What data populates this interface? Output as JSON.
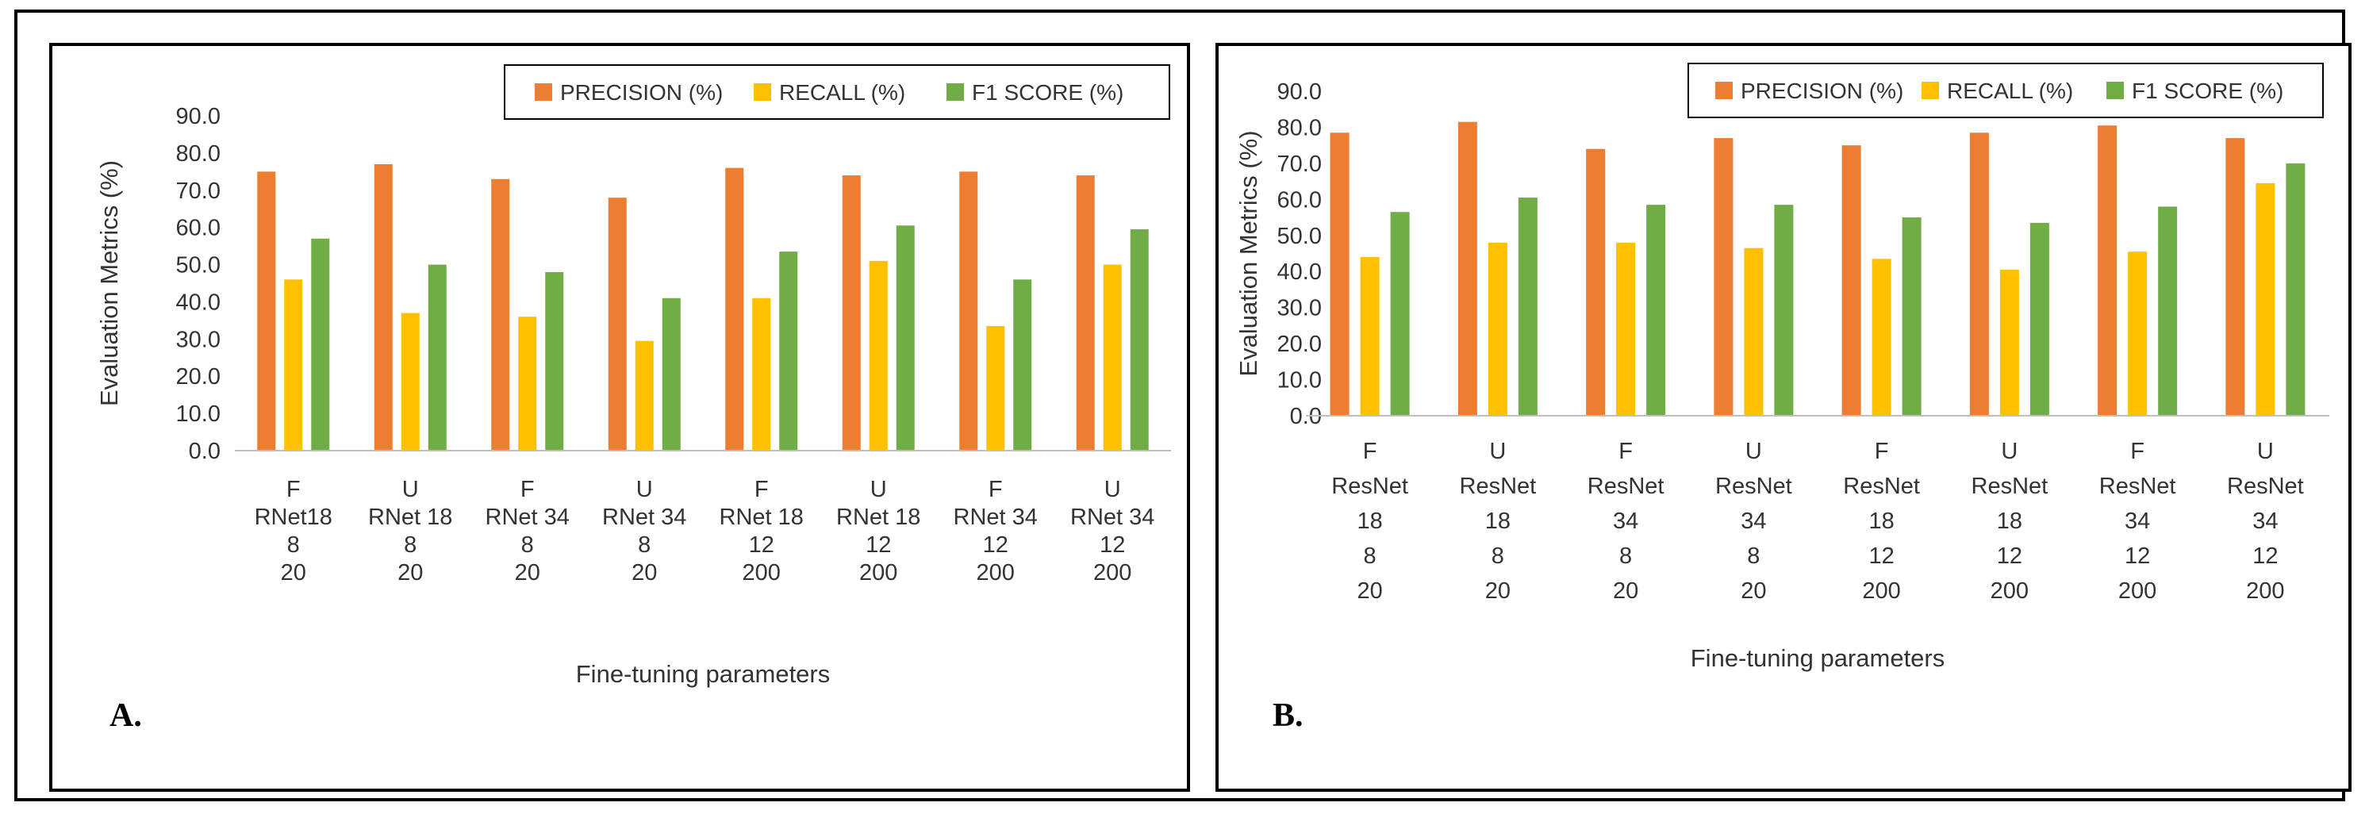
{
  "colors": {
    "precision": "#ED7D31",
    "recall": "#FFC000",
    "f1": "#70AD47",
    "axis": "#BFBFBF"
  },
  "legend": [
    "PRECISION (%)",
    "RECALL (%)",
    "F1 SCORE (%)"
  ],
  "chart_data": [
    {
      "panel_label": "A.",
      "type": "bar",
      "title": "",
      "ylabel": "Evaluation Metrics (%)",
      "xlabel": "Fine-tuning parameters",
      "ylim": [
        0,
        90
      ],
      "yticks": [
        "0.0",
        "10.0",
        "20.0",
        "30.0",
        "40.0",
        "50.0",
        "60.0",
        "70.0",
        "80.0",
        "90.0"
      ],
      "categories": [
        [
          "F",
          "RNet18",
          "8",
          "20"
        ],
        [
          "U",
          "RNet 18",
          "8",
          "20"
        ],
        [
          "F",
          "RNet 34",
          "8",
          "20"
        ],
        [
          "U",
          "RNet 34",
          "8",
          "20"
        ],
        [
          "F",
          "RNet 18",
          "12",
          "200"
        ],
        [
          "U",
          "RNet 18",
          "12",
          "200"
        ],
        [
          "F",
          "RNet 34",
          "12",
          "200"
        ],
        [
          "U",
          "RNet 34",
          "12",
          "200"
        ]
      ],
      "series": [
        {
          "name": "PRECISION (%)",
          "values": [
            75.0,
            77.0,
            73.0,
            68.0,
            76.0,
            74.0,
            75.0,
            74.0
          ]
        },
        {
          "name": "RECALL (%)",
          "values": [
            46.0,
            37.0,
            36.0,
            29.5,
            41.0,
            51.0,
            33.5,
            50.0
          ]
        },
        {
          "name": "F1 SCORE (%)",
          "values": [
            57.0,
            50.0,
            48.0,
            41.0,
            53.5,
            60.5,
            46.0,
            59.5
          ]
        }
      ]
    },
    {
      "panel_label": "B.",
      "type": "bar",
      "title": "",
      "ylabel": "Evaluation Metrics (%)",
      "xlabel": "Fine-tuning parameters",
      "ylim": [
        0,
        90
      ],
      "yticks": [
        "0.0",
        "10.0",
        "20.0",
        "30.0",
        "40.0",
        "50.0",
        "60.0",
        "70.0",
        "80.0",
        "90.0"
      ],
      "categories": [
        [
          "F",
          "ResNet",
          "18",
          "8",
          "20"
        ],
        [
          "U",
          "ResNet",
          "18",
          "8",
          "20"
        ],
        [
          "F",
          "ResNet",
          "34",
          "8",
          "20"
        ],
        [
          "U",
          "ResNet",
          "34",
          "8",
          "20"
        ],
        [
          "F",
          "ResNet",
          "18",
          "12",
          "200"
        ],
        [
          "U",
          "ResNet",
          "18",
          "12",
          "200"
        ],
        [
          "F",
          "ResNet",
          "34",
          "12",
          "200"
        ],
        [
          "U",
          "ResNet",
          "34",
          "12",
          "200"
        ]
      ],
      "series": [
        {
          "name": "PRECISION (%)",
          "values": [
            78.5,
            81.5,
            74.0,
            77.0,
            75.0,
            78.5,
            80.5,
            77.0
          ]
        },
        {
          "name": "RECALL (%)",
          "values": [
            44.0,
            48.0,
            48.0,
            46.5,
            43.5,
            40.5,
            45.5,
            64.5
          ]
        },
        {
          "name": "F1 SCORE (%)",
          "values": [
            56.5,
            60.5,
            58.5,
            58.5,
            55.0,
            53.5,
            58.0,
            70.0
          ]
        }
      ]
    }
  ]
}
